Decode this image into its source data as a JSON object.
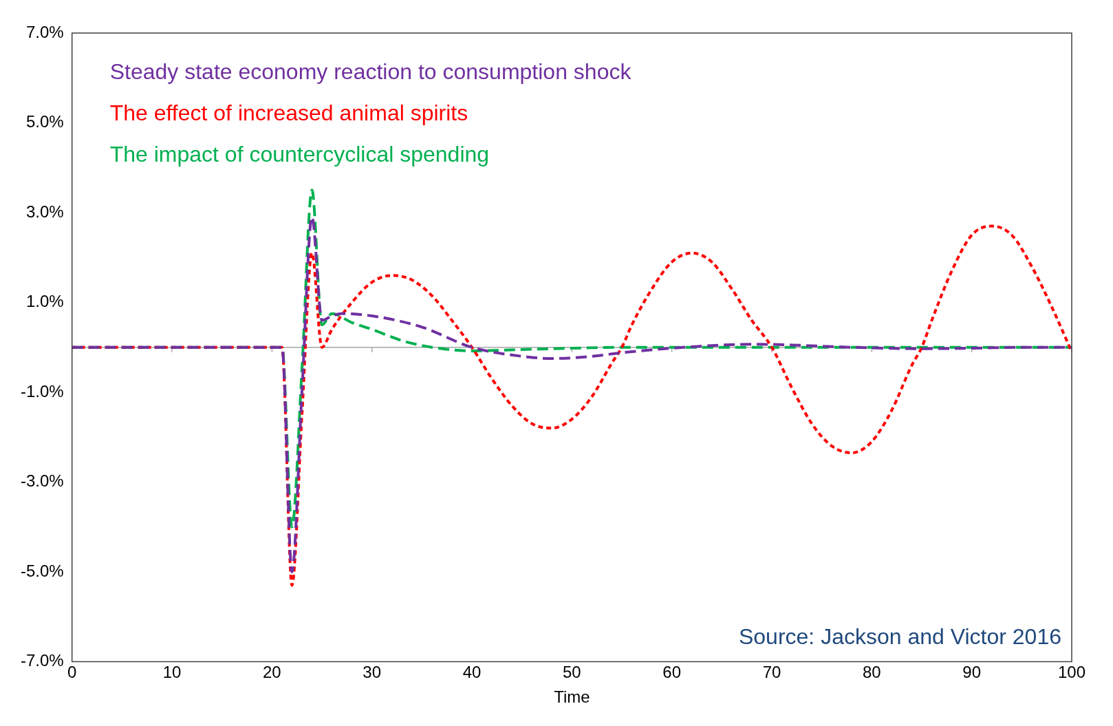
{
  "chart_data": {
    "type": "line",
    "xlabel": "Time",
    "annotations": [
      "Source: Jackson and Victor 2016"
    ],
    "xlim": [
      0,
      100
    ],
    "xticks": [
      0,
      10,
      20,
      30,
      40,
      50,
      60,
      70,
      80,
      90,
      100
    ],
    "ylim": [
      -7,
      7
    ],
    "yticks": [
      {
        "value": -7,
        "label": "-7.0%"
      },
      {
        "value": -5,
        "label": "-5.0%"
      },
      {
        "value": -3,
        "label": "-3.0%"
      },
      {
        "value": -1,
        "label": "-1.0%"
      },
      {
        "value": 1,
        "label": "1.0%"
      },
      {
        "value": 3,
        "label": "3.0%"
      },
      {
        "value": 5,
        "label": "5.0%"
      },
      {
        "value": 7,
        "label": "7.0%"
      }
    ],
    "grid": false,
    "marker": "none",
    "legend": "top left",
    "ref_lines": [
      {
        "axis": "y",
        "value": 0,
        "color": "#a6a6a6"
      }
    ],
    "series": [
      {
        "name": "Steady state economy reaction to consumption shock",
        "color": "#7030a0",
        "line_style": "dashed",
        "x": [
          0,
          21,
          22,
          23,
          24,
          25,
          26,
          27,
          30,
          35,
          40,
          45,
          48,
          52,
          55,
          60,
          65,
          68,
          72,
          78,
          85,
          90,
          95,
          100
        ],
        "values": [
          0,
          0,
          -5.0,
          -1.0,
          2.9,
          0.6,
          0.7,
          0.75,
          0.7,
          0.45,
          0.0,
          -0.2,
          -0.25,
          -0.2,
          -0.12,
          -0.02,
          0.05,
          0.07,
          0.05,
          0.0,
          -0.03,
          -0.02,
          0,
          0
        ]
      },
      {
        "name": "The effect of increased animal spirits",
        "color": "#ff0000",
        "line_style": "dotted",
        "x": [
          0,
          21,
          22,
          23,
          24,
          25,
          26,
          28,
          30,
          32,
          34,
          36,
          38,
          40,
          42,
          44,
          46,
          48,
          50,
          52,
          54,
          55,
          56,
          58,
          60,
          62,
          64,
          66,
          68,
          70,
          72,
          74,
          76,
          78,
          80,
          82,
          84,
          85,
          86,
          88,
          90,
          92,
          94,
          96,
          98,
          100
        ],
        "values": [
          0,
          0,
          -5.3,
          -1.5,
          2.1,
          0.0,
          0.4,
          1.0,
          1.45,
          1.6,
          1.5,
          1.15,
          0.6,
          0,
          -0.7,
          -1.3,
          -1.7,
          -1.8,
          -1.6,
          -1.1,
          -0.35,
          0,
          0.5,
          1.3,
          1.9,
          2.1,
          1.9,
          1.3,
          0.6,
          0,
          -0.9,
          -1.7,
          -2.2,
          -2.35,
          -2.1,
          -1.4,
          -0.4,
          0,
          0.6,
          1.7,
          2.5,
          2.7,
          2.5,
          1.8,
          0.9,
          -0.1
        ]
      },
      {
        "name": "The impact of countercyclical spending",
        "color": "#00b050",
        "line_style": "dashed",
        "x": [
          0,
          21,
          22,
          23,
          24,
          25,
          26,
          28,
          30,
          33,
          36,
          40,
          45,
          50,
          55,
          100
        ],
        "values": [
          0,
          0,
          -4.0,
          -0.5,
          3.5,
          0.5,
          0.75,
          0.55,
          0.4,
          0.15,
          0.0,
          -0.08,
          -0.05,
          -0.02,
          0,
          0
        ]
      }
    ]
  }
}
